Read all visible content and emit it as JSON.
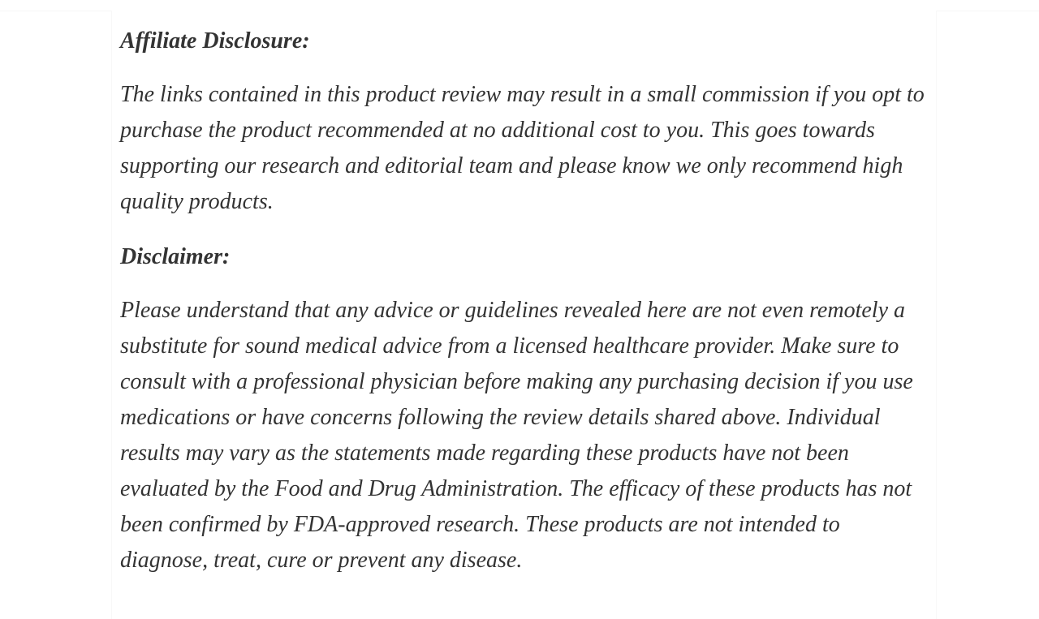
{
  "colors": {
    "text": "#333333",
    "background": "#ffffff"
  },
  "article": {
    "sections": [
      {
        "heading": "Affiliate Disclosure:",
        "paragraphs": [
          "The links contained in this product review may result in a small commission if you opt to purchase the product recommended at no additional cost to you. This goes towards supporting our research and editorial team and please know we only recommend high quality products."
        ]
      },
      {
        "heading": "Disclaimer:",
        "paragraphs": [
          "Please understand that any advice or guidelines revealed here are not even remotely a substitute for sound medical advice from a licensed healthcare provider. Make sure to consult with a professional physician before making any purchasing decision if you use medications or have concerns following the review details shared above. Individual results may vary as the statements made regarding these products have not been evaluated by the Food and Drug Administration. The efficacy of these products has not been confirmed by FDA-approved research. These products are not intended to diagnose, treat, cure or prevent any disease."
        ]
      }
    ]
  }
}
